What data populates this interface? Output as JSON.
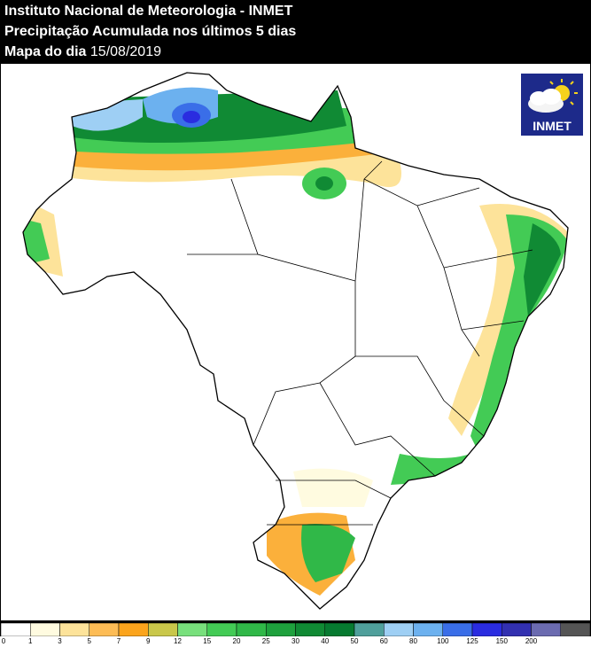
{
  "header": {
    "line1": "Instituto Nacional de Meteorologia - INMET",
    "line2": "Precipitação Acumulada nos últimos 5 dias",
    "line3_label": "Mapa do dia",
    "date": "15/08/2019"
  },
  "logo": {
    "text": "INMET",
    "icon": "sun-cloud-icon"
  },
  "legend": {
    "unit": "",
    "bins": [
      {
        "label": "0",
        "color": "#ffffff"
      },
      {
        "label": "1",
        "color": "#fffbe0"
      },
      {
        "label": "3",
        "color": "#fde39a"
      },
      {
        "label": "5",
        "color": "#fdbc55"
      },
      {
        "label": "7",
        "color": "#fba41c"
      },
      {
        "label": "9",
        "color": "#c9c74a"
      },
      {
        "label": "12",
        "color": "#78e07c"
      },
      {
        "label": "15",
        "color": "#43cb55"
      },
      {
        "label": "20",
        "color": "#30b848"
      },
      {
        "label": "25",
        "color": "#1ea13d"
      },
      {
        "label": "30",
        "color": "#108a34"
      },
      {
        "label": "40",
        "color": "#067a30"
      },
      {
        "label": "50",
        "color": "#4f9f9b"
      },
      {
        "label": "60",
        "color": "#9ecff4"
      },
      {
        "label": "80",
        "color": "#6cb1ef"
      },
      {
        "label": "100",
        "color": "#3a6ee8"
      },
      {
        "label": "125",
        "color": "#2a2ce0"
      },
      {
        "label": "150",
        "color": "#3230b0"
      },
      {
        "label": "200",
        "color": "#6b6bb0"
      },
      {
        "label": "",
        "color": "#555555"
      }
    ]
  }
}
